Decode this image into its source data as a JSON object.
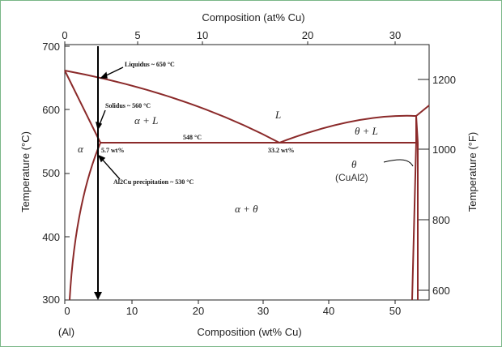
{
  "colors": {
    "frame": "#79b787",
    "phase_line": "#8b2a2a",
    "axis": "#222222"
  },
  "chart_data": {
    "type": "phase-diagram",
    "title": "",
    "x_top": {
      "label": "Composition (at% Cu)",
      "ticks": [
        "0",
        "5",
        "10",
        "20",
        "30"
      ]
    },
    "x_bottom": {
      "label": "Composition (wt% Cu)",
      "ticks": [
        "0",
        "10",
        "20",
        "30",
        "40",
        "50"
      ],
      "end_label": "(Al)",
      "range": [
        0,
        53
      ]
    },
    "y_left": {
      "label": "Temperature (°C)",
      "ticks": [
        "300",
        "400",
        "500",
        "600",
        "700"
      ],
      "range": [
        300,
        700
      ]
    },
    "y_right": {
      "label": "Temperature (°F)",
      "ticks": [
        "600",
        "800",
        "1000",
        "1200"
      ]
    },
    "phase_labels": [
      "α",
      "α + L",
      "L",
      "θ + L",
      "α + θ",
      "θ",
      "(CuAl2)"
    ],
    "annotations": [
      "Liquidus ~ 650 °C",
      "Solidus ~ 560 °C",
      "548 °C",
      "5.7 wt%",
      "33.2 wt%",
      "Al2Cu precipitation ~ 530 °C"
    ],
    "points": {
      "al_melting": {
        "wt": 0,
        "temp_c": 660
      },
      "alpha_max_solubility": {
        "wt": 5.7,
        "temp_c": 548
      },
      "eutectic": {
        "wt": 33.2,
        "temp_c": 548
      },
      "theta_phase": {
        "wt": 53,
        "temp_c": 591
      },
      "alloy_line_wt": 5
    }
  }
}
